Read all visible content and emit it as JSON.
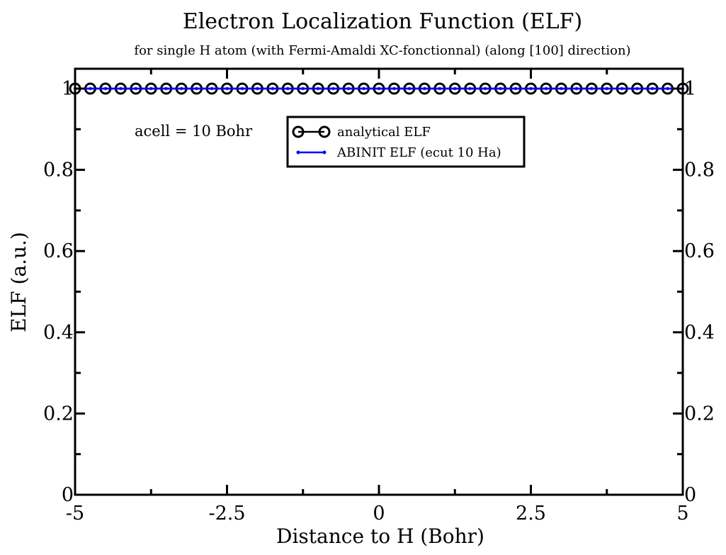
{
  "chart_data": {
    "type": "line",
    "title": "Electron Localization Function (ELF)",
    "subtitle": "for single H atom (with Fermi-Amaldi XC-fonctionnal) (along [100] direction)",
    "xlabel": "Distance to H (Bohr)",
    "ylabel": "ELF (a.u.)",
    "xlim": [
      -5,
      5
    ],
    "ylim": [
      0,
      1
    ],
    "x_ticks": [
      "-5",
      "-2.5",
      "0",
      "2.5",
      "5"
    ],
    "y_ticks": [
      "0",
      "0.2",
      "0.4",
      "0.6",
      "0.8",
      "1"
    ],
    "grid": false,
    "legend_position": "top-center",
    "annotation": "acell = 10 Bohr",
    "series": [
      {
        "name": "analytical ELF",
        "color": "#000000",
        "marker": "open-circle",
        "x": [
          -5.0,
          -4.75,
          -4.5,
          -4.25,
          -4.0,
          -3.75,
          -3.5,
          -3.25,
          -3.0,
          -2.75,
          -2.5,
          -2.25,
          -2.0,
          -1.75,
          -1.5,
          -1.25,
          -1.0,
          -0.75,
          -0.5,
          -0.25,
          0.0,
          0.25,
          0.5,
          0.75,
          1.0,
          1.25,
          1.5,
          1.75,
          2.0,
          2.25,
          2.5,
          2.75,
          3.0,
          3.25,
          3.5,
          3.75,
          4.0,
          4.25,
          4.5,
          4.75,
          5.0
        ],
        "y": [
          1,
          1,
          1,
          1,
          1,
          1,
          1,
          1,
          1,
          1,
          1,
          1,
          1,
          1,
          1,
          1,
          1,
          1,
          1,
          1,
          1,
          1,
          1,
          1,
          1,
          1,
          1,
          1,
          1,
          1,
          1,
          1,
          1,
          1,
          1,
          1,
          1,
          1,
          1,
          1,
          1
        ]
      },
      {
        "name": "ABINIT ELF (ecut 10 Ha)",
        "color": "#0000ff",
        "marker": "dot",
        "x": [
          -5.0,
          -4.75,
          -4.5,
          -4.25,
          -4.0,
          -3.75,
          -3.5,
          -3.25,
          -3.0,
          -2.75,
          -2.5,
          -2.25,
          -2.0,
          -1.75,
          -1.5,
          -1.25,
          -1.0,
          -0.75,
          -0.5,
          -0.25,
          0.0,
          0.25,
          0.5,
          0.75,
          1.0,
          1.25,
          1.5,
          1.75,
          2.0,
          2.25,
          2.5,
          2.75,
          3.0,
          3.25,
          3.5,
          3.75,
          4.0,
          4.25,
          4.5,
          4.75,
          5.0
        ],
        "y": [
          1,
          1,
          1,
          1,
          1,
          1,
          1,
          1,
          1,
          1,
          1,
          1,
          1,
          1,
          1,
          1,
          1,
          1,
          1,
          1,
          1,
          1,
          1,
          1,
          1,
          1,
          1,
          1,
          1,
          1,
          1,
          1,
          1,
          1,
          1,
          1,
          1,
          1,
          1,
          1,
          1
        ]
      }
    ]
  }
}
